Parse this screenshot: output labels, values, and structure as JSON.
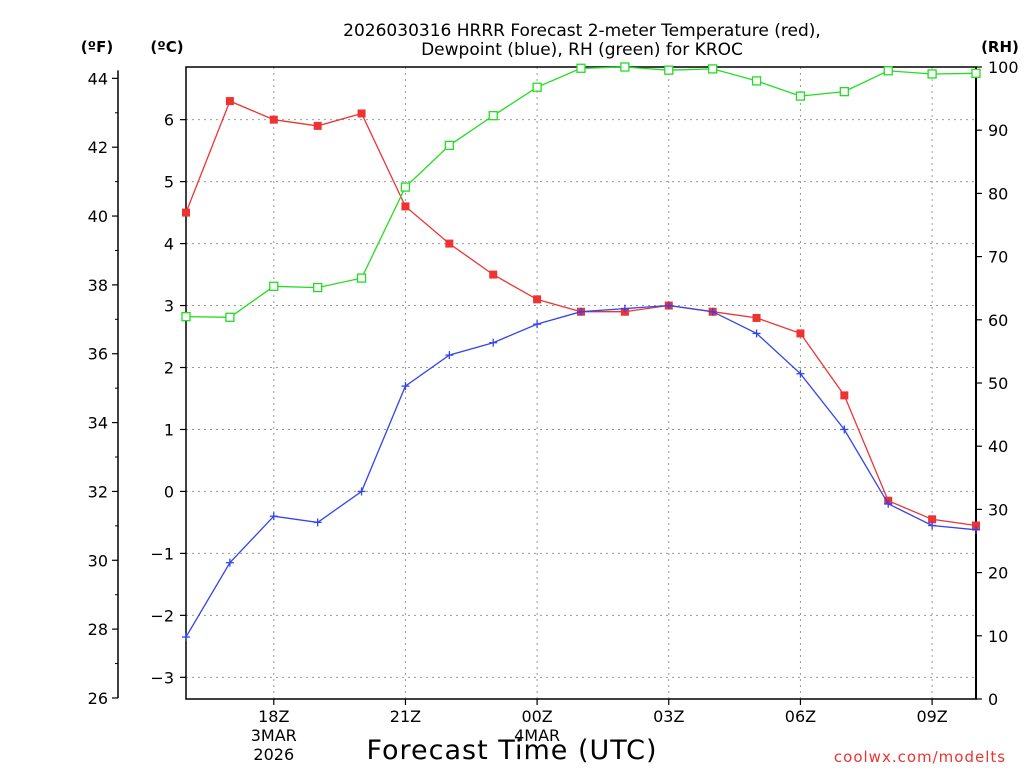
{
  "chart_data": {
    "type": "line",
    "title_line1": "2026030316 HRRR Forecast 2-meter Temperature (red),",
    "title_line2": "Dewpoint (blue), RH (green) for KROC",
    "xlabel": "Forecast Time (UTC)",
    "credit": "coolwx.com/modelts",
    "unit_labels": {
      "fahrenheit": "(ºF)",
      "celsius": "(ºC)",
      "rh": "(RH)"
    },
    "x_range_hours": [
      0,
      18
    ],
    "x_ticks": [
      {
        "hour": 2,
        "label": "18Z",
        "sub1": "3MAR",
        "sub2": "2026"
      },
      {
        "hour": 5,
        "label": "21Z",
        "sub1": "",
        "sub2": ""
      },
      {
        "hour": 8,
        "label": "00Z",
        "sub1": "4MAR",
        "sub2": ""
      },
      {
        "hour": 11,
        "label": "03Z",
        "sub1": "",
        "sub2": ""
      },
      {
        "hour": 14,
        "label": "06Z",
        "sub1": "",
        "sub2": ""
      },
      {
        "hour": 17,
        "label": "09Z",
        "sub1": "",
        "sub2": ""
      }
    ],
    "celsius_ticks": [
      -3,
      -2,
      -1,
      0,
      1,
      2,
      3,
      4,
      5,
      6
    ],
    "fahrenheit_ticks": [
      26,
      28,
      30,
      32,
      34,
      36,
      38,
      40,
      42,
      44
    ],
    "rh_ticks": [
      0,
      10,
      20,
      30,
      40,
      50,
      60,
      70,
      80,
      90,
      100
    ],
    "celsius_range": [
      -3.35,
      6.85
    ],
    "rh_range": [
      0,
      100
    ],
    "hours": [
      0,
      1,
      2,
      3,
      4,
      5,
      6,
      7,
      8,
      9,
      10,
      11,
      12,
      13,
      14,
      15,
      16,
      17,
      18
    ],
    "series": [
      {
        "name": "Temperature",
        "unit": "C",
        "color": "#ee3333",
        "marker": "filled-square",
        "values": [
          4.5,
          6.3,
          6.0,
          5.9,
          6.1,
          4.6,
          4.0,
          3.5,
          3.1,
          2.9,
          2.9,
          3.0,
          2.9,
          2.8,
          2.55,
          1.55,
          -0.15,
          -0.45,
          -0.55
        ]
      },
      {
        "name": "Dewpoint",
        "unit": "C",
        "color": "#3344ee",
        "marker": "plus",
        "values": [
          -2.35,
          -1.15,
          -0.4,
          -0.5,
          0.0,
          1.7,
          2.2,
          2.4,
          2.7,
          2.9,
          2.95,
          3.0,
          2.9,
          2.55,
          1.9,
          1.0,
          -0.2,
          -0.55,
          -0.62
        ]
      },
      {
        "name": "RH",
        "unit": "%",
        "color": "#22dd22",
        "marker": "open-square",
        "values": [
          60.5,
          60.4,
          65.3,
          65.1,
          66.6,
          81.0,
          87.6,
          92.3,
          96.8,
          99.8,
          100.0,
          99.5,
          99.7,
          97.8,
          95.4,
          96.1,
          99.4,
          98.9,
          99.0
        ]
      }
    ]
  }
}
